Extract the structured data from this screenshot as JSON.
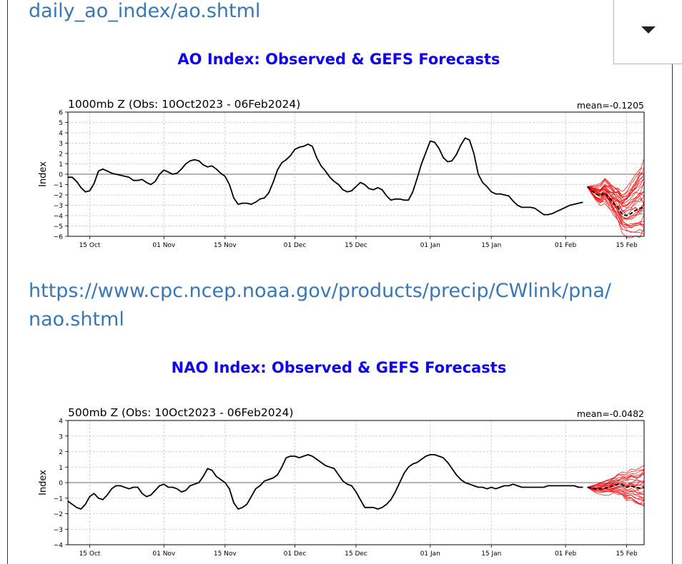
{
  "links": {
    "ao_partial": "daily_ao_index/ao.shtml",
    "nao_line1": "https://www.cpc.ncep.noaa.gov/products/precip/CWlink/pna/",
    "nao_line2": "nao.shtml"
  },
  "dropdown": {
    "icon": "caret-down-icon"
  },
  "colors": {
    "link": "#3a78b5",
    "heading": "#1000f0",
    "observed": "#000000",
    "members": "#ff0000",
    "ensemble_mean": "#000000"
  },
  "headings": {
    "ao": "AO Index: Observed & GEFS Forecasts",
    "nao": "NAO Index: Observed & GEFS Forecasts"
  },
  "chart_data": [
    {
      "type": "line",
      "title": "1000mb Z (Obs: 10Oct2023 - 06Feb2024)",
      "mean_label": "mean=-0.1205",
      "ylabel": "Index",
      "xlabel": "",
      "ylim": [
        -6,
        6
      ],
      "yticks": [
        "6",
        "5",
        "4",
        "3",
        "2",
        "1",
        "0",
        "−1",
        "−2",
        "−3",
        "−4",
        "−5",
        "−6"
      ],
      "ytick_values": [
        6,
        5,
        4,
        3,
        2,
        1,
        0,
        -1,
        -2,
        -3,
        -4,
        -5,
        -6
      ],
      "xlim": [
        0,
        132
      ],
      "xticks": [
        {
          "label": "15 Oct",
          "day": 5
        },
        {
          "label": "01 Nov",
          "day": 22
        },
        {
          "label": "15 Nov",
          "day": 36
        },
        {
          "label": "01 Dec",
          "day": 52
        },
        {
          "label": "15 Dec",
          "day": 66
        },
        {
          "label": "01 Jan",
          "day": 83
        },
        {
          "label": "15 Jan",
          "day": 97
        },
        {
          "label": "01 Feb",
          "day": 114
        },
        {
          "label": "15 Feb",
          "day": 128
        }
      ],
      "grid": true,
      "observed": {
        "name": "observed",
        "x": [
          0,
          1,
          2,
          3,
          4,
          5,
          6,
          7,
          8,
          9,
          10,
          11,
          12,
          13,
          14,
          15,
          16,
          17,
          18,
          19,
          20,
          21,
          22,
          23,
          24,
          25,
          26,
          27,
          28,
          29,
          30,
          31,
          32,
          33,
          34,
          35,
          36,
          37,
          38,
          39,
          40,
          41,
          42,
          43,
          44,
          45,
          46,
          47,
          48,
          49,
          50,
          51,
          52,
          53,
          54,
          55,
          56,
          57,
          58,
          59,
          60,
          61,
          62,
          63,
          64,
          65,
          66,
          67,
          68,
          69,
          70,
          71,
          72,
          73,
          74,
          75,
          76,
          77,
          78,
          79,
          80,
          81,
          82,
          83,
          84,
          85,
          86,
          87,
          88,
          89,
          90,
          91,
          92,
          93,
          94,
          95,
          96,
          97,
          98,
          99,
          100,
          101,
          102,
          103,
          104,
          105,
          106,
          107,
          108,
          109,
          110,
          111,
          112,
          113,
          114,
          115,
          116,
          117,
          118
        ],
        "y": [
          -0.3,
          -0.3,
          -0.7,
          -1.3,
          -1.7,
          -1.6,
          -0.9,
          0.3,
          0.5,
          0.3,
          0.1,
          0.0,
          -0.1,
          -0.2,
          -0.3,
          -0.6,
          -0.6,
          -0.5,
          -0.8,
          -1.0,
          -0.7,
          0.0,
          0.4,
          0.2,
          0.0,
          0.1,
          0.5,
          1.0,
          1.3,
          1.4,
          1.3,
          0.9,
          0.7,
          0.8,
          0.5,
          0.1,
          -0.2,
          -1.0,
          -2.3,
          -2.9,
          -2.8,
          -2.8,
          -2.9,
          -2.7,
          -2.4,
          -2.3,
          -1.8,
          -0.8,
          0.4,
          1.1,
          1.4,
          1.8,
          2.4,
          2.6,
          2.7,
          2.9,
          2.7,
          1.6,
          0.8,
          0.3,
          -0.3,
          -0.7,
          -1.0,
          -1.5,
          -1.7,
          -1.6,
          -1.2,
          -0.8,
          -1.0,
          -1.4,
          -1.5,
          -1.3,
          -1.5,
          -2.1,
          -2.5,
          -2.4,
          -2.4,
          -2.5,
          -2.5,
          -1.7,
          -0.4,
          1.0,
          2.1,
          3.2,
          3.1,
          2.5,
          1.6,
          1.2,
          1.3,
          1.9,
          2.8,
          3.5,
          3.3,
          2.0,
          0.0,
          -0.8,
          -1.2,
          -1.7,
          -1.9,
          -1.9,
          -2.0,
          -2.1,
          -2.6,
          -3.0,
          -3.2,
          -3.2,
          -3.2,
          -3.3,
          -3.6,
          -3.9,
          -3.9,
          -3.8,
          -3.6,
          -3.4,
          -3.2,
          -3.0,
          -2.9,
          -2.8,
          -2.7
        ]
      },
      "forecast_mean": {
        "name": "ensemble mean",
        "x": [
          119,
          120,
          121,
          122,
          123,
          124,
          125,
          126,
          127,
          128,
          129,
          130,
          131,
          132
        ],
        "y": [
          -1.2,
          -1.6,
          -1.9,
          -2.1,
          -1.8,
          -2.3,
          -2.8,
          -3.2,
          -3.9,
          -4.0,
          -3.8,
          -3.5,
          -3.3,
          -3.2
        ]
      },
      "forecast_members": {
        "name": "GEFS members",
        "start_day": 119,
        "end_day": 132,
        "count": 31,
        "end_range": [
          -5.9,
          1.1
        ]
      }
    },
    {
      "type": "line",
      "title": "500mb Z (Obs: 10Oct2023 - 06Feb2024)",
      "mean_label": "mean=-0.0482",
      "ylabel": "Index",
      "xlabel": "",
      "ylim": [
        -4,
        4
      ],
      "yticks": [
        "4",
        "3",
        "2",
        "1",
        "0",
        "−1",
        "−2",
        "−3",
        "−4"
      ],
      "ytick_values": [
        4,
        3,
        2,
        1,
        0,
        -1,
        -2,
        -3,
        -4
      ],
      "xlim": [
        0,
        132
      ],
      "xticks": [
        {
          "label": "15 Oct",
          "day": 5
        },
        {
          "label": "01 Nov",
          "day": 22
        },
        {
          "label": "15 Nov",
          "day": 36
        },
        {
          "label": "01 Dec",
          "day": 52
        },
        {
          "label": "15 Dec",
          "day": 66
        },
        {
          "label": "01 Jan",
          "day": 83
        },
        {
          "label": "15 Jan",
          "day": 97
        },
        {
          "label": "01 Feb",
          "day": 114
        },
        {
          "label": "15 Feb",
          "day": 128
        }
      ],
      "grid": true,
      "observed": {
        "name": "observed",
        "x": [
          0,
          1,
          2,
          3,
          4,
          5,
          6,
          7,
          8,
          9,
          10,
          11,
          12,
          13,
          14,
          15,
          16,
          17,
          18,
          19,
          20,
          21,
          22,
          23,
          24,
          25,
          26,
          27,
          28,
          29,
          30,
          31,
          32,
          33,
          34,
          35,
          36,
          37,
          38,
          39,
          40,
          41,
          42,
          43,
          44,
          45,
          46,
          47,
          48,
          49,
          50,
          51,
          52,
          53,
          54,
          55,
          56,
          57,
          58,
          59,
          60,
          61,
          62,
          63,
          64,
          65,
          66,
          67,
          68,
          69,
          70,
          71,
          72,
          73,
          74,
          75,
          76,
          77,
          78,
          79,
          80,
          81,
          82,
          83,
          84,
          85,
          86,
          87,
          88,
          89,
          90,
          91,
          92,
          93,
          94,
          95,
          96,
          97,
          98,
          99,
          100,
          101,
          102,
          103,
          104,
          105,
          106,
          107,
          108,
          109,
          110,
          111,
          112,
          113,
          114,
          115,
          116,
          117,
          118
        ],
        "y": [
          -1.2,
          -1.4,
          -1.6,
          -1.7,
          -1.4,
          -0.9,
          -0.7,
          -1.0,
          -1.1,
          -0.8,
          -0.4,
          -0.2,
          -0.2,
          -0.3,
          -0.4,
          -0.3,
          -0.3,
          -0.7,
          -0.9,
          -0.8,
          -0.5,
          -0.2,
          -0.1,
          -0.3,
          -0.3,
          -0.4,
          -0.6,
          -0.5,
          -0.2,
          -0.1,
          0.0,
          0.4,
          0.9,
          0.8,
          0.4,
          0.2,
          0.0,
          -0.4,
          -1.3,
          -1.7,
          -1.6,
          -1.4,
          -0.9,
          -0.4,
          -0.2,
          0.1,
          0.2,
          0.3,
          0.5,
          1.0,
          1.6,
          1.7,
          1.7,
          1.6,
          1.7,
          1.8,
          1.7,
          1.5,
          1.3,
          1.1,
          1.0,
          0.9,
          0.5,
          0.1,
          -0.1,
          -0.2,
          -0.6,
          -1.1,
          -1.6,
          -1.6,
          -1.6,
          -1.7,
          -1.6,
          -1.4,
          -1.1,
          -0.6,
          0.0,
          0.6,
          1.0,
          1.2,
          1.3,
          1.5,
          1.7,
          1.8,
          1.8,
          1.7,
          1.6,
          1.3,
          0.9,
          0.5,
          0.2,
          0.0,
          -0.1,
          -0.2,
          -0.3,
          -0.3,
          -0.4,
          -0.3,
          -0.4,
          -0.3,
          -0.2,
          -0.2,
          -0.1,
          -0.2,
          -0.3,
          -0.3,
          -0.3,
          -0.3,
          -0.3,
          -0.3,
          -0.2,
          -0.2,
          -0.2,
          -0.2,
          -0.2,
          -0.2,
          -0.2,
          -0.3,
          -0.3
        ]
      },
      "forecast_mean": {
        "name": "ensemble mean",
        "x": [
          119,
          120,
          121,
          122,
          123,
          124,
          125,
          126,
          127,
          128,
          129,
          130,
          131,
          132
        ],
        "y": [
          -0.3,
          -0.35,
          -0.4,
          -0.4,
          -0.35,
          -0.3,
          -0.2,
          -0.1,
          -0.15,
          -0.3,
          -0.2,
          -0.3,
          -0.35,
          -0.3
        ]
      },
      "forecast_members": {
        "name": "GEFS members",
        "start_day": 119,
        "end_day": 132,
        "count": 25,
        "end_range": [
          -1.6,
          1.1
        ]
      }
    }
  ]
}
